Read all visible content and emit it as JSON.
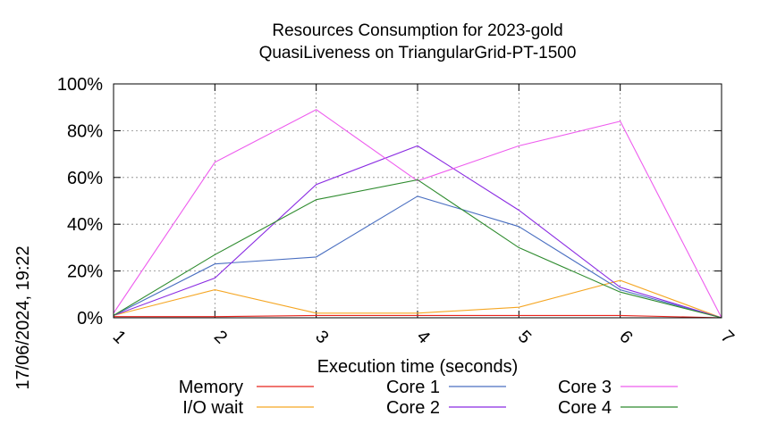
{
  "chart_data": {
    "type": "line",
    "title": "Resources Consumption for 2023-gold",
    "subtitle": "QuasiLiveness on TriangularGrid-PT-1500",
    "xlabel": "Execution time (seconds)",
    "ylabel": "",
    "xlim": [
      1,
      7
    ],
    "ylim": [
      0,
      100
    ],
    "x_ticks": [
      "1",
      "2",
      "3",
      "4",
      "5",
      "6",
      "7"
    ],
    "y_ticks": [
      "0%",
      "20%",
      "40%",
      "60%",
      "80%",
      "100%"
    ],
    "grid": true,
    "legend_position": "bottom",
    "x": [
      1,
      2,
      3,
      4,
      5,
      6,
      7
    ],
    "series": [
      {
        "name": "Memory",
        "color": "#e8231c",
        "values": [
          0.5,
          0.5,
          1,
          1,
          1,
          1,
          0
        ]
      },
      {
        "name": "I/O wait",
        "color": "#f5a623",
        "values": [
          1,
          12,
          2,
          2,
          4.5,
          16,
          0
        ]
      },
      {
        "name": "Core 1",
        "color": "#4a6fc1",
        "values": [
          1,
          23,
          26,
          52,
          39,
          12,
          0
        ]
      },
      {
        "name": "Core 2",
        "color": "#8a2be2",
        "values": [
          1,
          17,
          57,
          73.5,
          46,
          13,
          0
        ]
      },
      {
        "name": "Core 3",
        "color": "#ee5cee",
        "values": [
          2,
          66.5,
          89,
          58.5,
          73.5,
          84,
          0
        ]
      },
      {
        "name": "Core 4",
        "color": "#2e8b2e",
        "values": [
          1,
          27,
          50.5,
          59,
          30,
          11,
          0
        ]
      }
    ]
  },
  "timestamp": "17/06/2024, 19:22"
}
